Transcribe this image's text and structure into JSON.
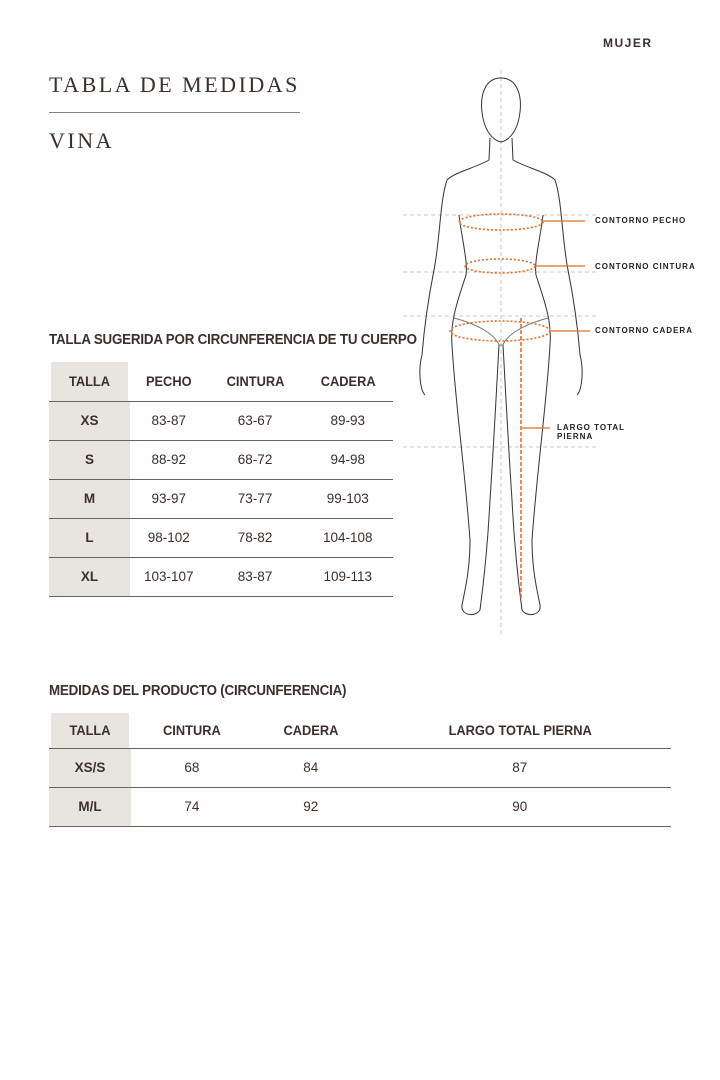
{
  "gender": "MUJER",
  "title": "TABLA DE MEDIDAS",
  "product_name": "VINA",
  "figure": {
    "labels": {
      "chest": "CONTORNO PECHO",
      "waist": "CONTORNO CINTURA",
      "hip": "CONTORNO CADERA",
      "leg_line1": "LARGO TOTAL",
      "leg_line2": "PIERNA"
    },
    "accent_color": "#e0702a"
  },
  "body_table": {
    "heading": "TALLA SUGERIDA POR CIRCUNFERENCIA DE TU CUERPO",
    "columns": [
      "TALLA",
      "PECHO",
      "CINTURA",
      "CADERA"
    ],
    "rows": [
      [
        "XS",
        "83-87",
        "63-67",
        "89-93"
      ],
      [
        "S",
        "88-92",
        "68-72",
        "94-98"
      ],
      [
        "M",
        "93-97",
        "73-77",
        "99-103"
      ],
      [
        "L",
        "98-102",
        "78-82",
        "104-108"
      ],
      [
        "XL",
        "103-107",
        "83-87",
        "109-113"
      ]
    ]
  },
  "product_table": {
    "heading": "MEDIDAS DEL PRODUCTO (CIRCUNFERENCIA)",
    "columns": [
      "TALLA",
      "CINTURA",
      "CADERA",
      "LARGO TOTAL PIERNA"
    ],
    "rows": [
      [
        "XS/S",
        "68",
        "84",
        "87"
      ],
      [
        "M/L",
        "74",
        "92",
        "90"
      ]
    ]
  }
}
